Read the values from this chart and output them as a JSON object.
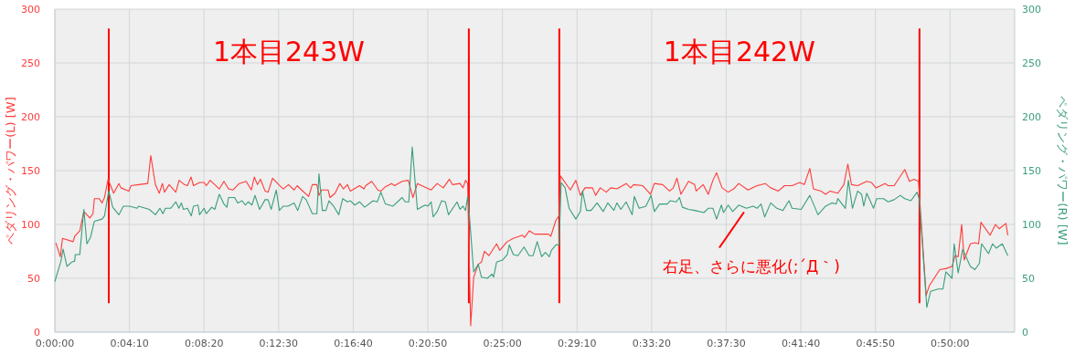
{
  "chart_data": {
    "type": "line",
    "ylabel": "ペダリング・パワー(L) [W]",
    "y2label": "ペダリング・パワー(R) [W]",
    "xlim": [
      0,
      0.8935
    ],
    "xticks": [
      {
        "value": 0,
        "label": "0:00:00"
      },
      {
        "value": 0.069444,
        "label": "0:04:10"
      },
      {
        "value": 0.138889,
        "label": "0:08:20"
      },
      {
        "value": 0.208333,
        "label": "0:12:30"
      },
      {
        "value": 0.277778,
        "label": "0:16:40"
      },
      {
        "value": 0.347222,
        "label": "0:20:50"
      },
      {
        "value": 0.416667,
        "label": "0:25:00"
      },
      {
        "value": 0.486111,
        "label": "0:29:10"
      },
      {
        "value": 0.555556,
        "label": "0:33:20"
      },
      {
        "value": 0.625,
        "label": "0:37:30"
      },
      {
        "value": 0.694444,
        "label": "0:41:40"
      },
      {
        "value": 0.763889,
        "label": "0:45:50"
      },
      {
        "value": 0.833333,
        "label": "0:50:00"
      }
    ],
    "ylim": [
      0,
      300
    ],
    "yticks": [
      0,
      50,
      100,
      150,
      200,
      250,
      300
    ],
    "y2lim": [
      0,
      300
    ],
    "y2ticks": [
      0,
      50,
      100,
      150,
      200,
      250,
      300
    ],
    "grid": true,
    "series": [
      {
        "color": "#ff3b3b",
        "x": [
          0.0009,
          0.0051,
          0.0071,
          0.017,
          0.0185,
          0.0232,
          0.027,
          0.0326,
          0.0355,
          0.0368,
          0.0411,
          0.044,
          0.0462,
          0.0496,
          0.0547,
          0.0596,
          0.0615,
          0.0689,
          0.0709,
          0.078,
          0.0865,
          0.0893,
          0.0936,
          0.0972,
          0.1001,
          0.1021,
          0.1064,
          0.1126,
          0.1157,
          0.1206,
          0.1234,
          0.1268,
          0.1291,
          0.1347,
          0.1389,
          0.141,
          0.1446,
          0.1531,
          0.1574,
          0.1617,
          0.1659,
          0.1716,
          0.1781,
          0.1829,
          0.1857,
          0.1886,
          0.1914,
          0.1957,
          0.1985,
          0.2027,
          0.2084,
          0.2127,
          0.2175,
          0.2227,
          0.2255,
          0.2297,
          0.2363,
          0.2397,
          0.2439,
          0.2459,
          0.2482,
          0.2544,
          0.2561,
          0.2609,
          0.2652,
          0.2686,
          0.2723,
          0.2751,
          0.2836,
          0.2878,
          0.2893,
          0.295,
          0.3006,
          0.3035,
          0.3077,
          0.3134,
          0.3162,
          0.3233,
          0.329,
          0.3333,
          0.3375,
          0.3503,
          0.3559,
          0.3616,
          0.3673,
          0.3701,
          0.3772,
          0.38,
          0.3823,
          0.3843,
          0.3871,
          0.3899,
          0.3942,
          0.3971,
          0.3999,
          0.4041,
          0.4112,
          0.4141,
          0.4211,
          0.4268,
          0.4353,
          0.4373,
          0.4416,
          0.4467,
          0.4594,
          0.4617,
          0.4665,
          0.4694,
          0.4707,
          0.4799,
          0.485,
          0.4892,
          0.4935,
          0.5005,
          0.5034,
          0.5077,
          0.5133,
          0.5175,
          0.5232,
          0.5318,
          0.536,
          0.5388,
          0.5473,
          0.5545,
          0.5581,
          0.5658,
          0.5723,
          0.5757,
          0.5791,
          0.5828,
          0.5899,
          0.5956,
          0.597,
          0.6035,
          0.6083,
          0.6126,
          0.616,
          0.6211,
          0.6268,
          0.6319,
          0.6366,
          0.6452,
          0.6537,
          0.6613,
          0.6664,
          0.6736,
          0.6792,
          0.6863,
          0.6934,
          0.6977,
          0.7028,
          0.7062,
          0.7132,
          0.7175,
          0.7217,
          0.7289,
          0.7345,
          0.7382,
          0.7416,
          0.7473,
          0.7558,
          0.76,
          0.7643,
          0.7728,
          0.7757,
          0.7813,
          0.7912,
          0.7955,
          0.7998,
          0.804,
          0.8111,
          0.814,
          0.8238,
          0.8295,
          0.8352,
          0.838,
          0.8409,
          0.8442,
          0.8465,
          0.8522,
          0.8565,
          0.8599,
          0.8621,
          0.8706,
          0.8757,
          0.8791,
          0.8854,
          0.8871
        ],
        "values": [
          83,
          70,
          87,
          84,
          89,
          94,
          112,
          106,
          110,
          124,
          124,
          120,
          125,
          142,
          129,
          138,
          134,
          131,
          136,
          137,
          138,
          164,
          137,
          129,
          138,
          130,
          137,
          130,
          141,
          137,
          136,
          144,
          136,
          139,
          139,
          136,
          141,
          133,
          140,
          133,
          132,
          138,
          140,
          132,
          144,
          137,
          142,
          131,
          130,
          143,
          137,
          133,
          137,
          132,
          136,
          132,
          126,
          137,
          137,
          127,
          132,
          132,
          125,
          129,
          138,
          133,
          137,
          131,
          136,
          133,
          136,
          140,
          132,
          131,
          135,
          138,
          136,
          140,
          141,
          125,
          138,
          132,
          138,
          134,
          142,
          137,
          138,
          134,
          141,
          138,
          6,
          51,
          63,
          65,
          75,
          71,
          82,
          76,
          84,
          87,
          90,
          88,
          94,
          91,
          91,
          89,
          104,
          108,
          145,
          132,
          141,
          127,
          134,
          134,
          127,
          134,
          130,
          134,
          133,
          138,
          134,
          137,
          136,
          128,
          138,
          137,
          131,
          134,
          143,
          128,
          140,
          137,
          131,
          137,
          128,
          141,
          148,
          134,
          130,
          133,
          138,
          132,
          136,
          138,
          134,
          131,
          136,
          136,
          139,
          137,
          152,
          133,
          131,
          128,
          131,
          129,
          137,
          156,
          137,
          136,
          140,
          139,
          134,
          138,
          136,
          136,
          151,
          140,
          142,
          140,
          34,
          43,
          58,
          59,
          61,
          71,
          70,
          100,
          67,
          82,
          83,
          82,
          102,
          90,
          100,
          96,
          101,
          90
        ]
      },
      {
        "color": "#3a9e7c",
        "axis": "y2",
        "x": [
          0,
          0.0057,
          0.0077,
          0.0113,
          0.0156,
          0.0185,
          0.019,
          0.0232,
          0.027,
          0.0298,
          0.0332,
          0.0368,
          0.044,
          0.0462,
          0.0502,
          0.0539,
          0.0596,
          0.0638,
          0.0695,
          0.0766,
          0.078,
          0.0879,
          0.0936,
          0.0978,
          0.1006,
          0.1029,
          0.1078,
          0.1126,
          0.1155,
          0.1177,
          0.1197,
          0.1234,
          0.127,
          0.1291,
          0.1333,
          0.1347,
          0.1389,
          0.141,
          0.1461,
          0.1489,
          0.1531,
          0.1574,
          0.1602,
          0.1617,
          0.1674,
          0.1702,
          0.1744,
          0.1772,
          0.1801,
          0.1835,
          0.1863,
          0.1906,
          0.1957,
          0.1985,
          0.2014,
          0.2061,
          0.209,
          0.2127,
          0.217,
          0.2227,
          0.2261,
          0.2306,
          0.234,
          0.2397,
          0.2439,
          0.2459,
          0.249,
          0.2524,
          0.2552,
          0.2595,
          0.2643,
          0.268,
          0.2723,
          0.2751,
          0.2793,
          0.2836,
          0.2884,
          0.2963,
          0.3001,
          0.3035,
          0.3077,
          0.3148,
          0.3233,
          0.3261,
          0.3295,
          0.3327,
          0.3375,
          0.3446,
          0.3474,
          0.3503,
          0.3522,
          0.3559,
          0.3601,
          0.3635,
          0.3664,
          0.3744,
          0.3772,
          0.38,
          0.3823,
          0.3843,
          0.3857,
          0.3899,
          0.3942,
          0.3971,
          0.4027,
          0.4069,
          0.4084,
          0.4112,
          0.4169,
          0.4211,
          0.4231,
          0.4268,
          0.4311,
          0.4367,
          0.4416,
          0.4452,
          0.449,
          0.4532,
          0.4566,
          0.4603,
          0.4622,
          0.4665,
          0.4694,
          0.4713,
          0.475,
          0.4787,
          0.485,
          0.4892,
          0.4912,
          0.4949,
          0.4992,
          0.5048,
          0.5105,
          0.5147,
          0.5204,
          0.5232,
          0.5269,
          0.5318,
          0.5374,
          0.5394,
          0.5439,
          0.5502,
          0.555,
          0.5581,
          0.563,
          0.57,
          0.5728,
          0.5785,
          0.5814,
          0.5842,
          0.5899,
          0.5956,
          0.6041,
          0.6083,
          0.6126,
          0.616,
          0.6205,
          0.6225,
          0.6268,
          0.631,
          0.6366,
          0.6438,
          0.65,
          0.6537,
          0.6574,
          0.6608,
          0.6664,
          0.6721,
          0.6778,
          0.6834,
          0.6863,
          0.6948,
          0.7028,
          0.7104,
          0.7175,
          0.7232,
          0.7274,
          0.7289,
          0.7359,
          0.7387,
          0.7425,
          0.7473,
          0.751,
          0.753,
          0.7558,
          0.7621,
          0.7651,
          0.7714,
          0.7757,
          0.7813,
          0.787,
          0.7912,
          0.7969,
          0.8026,
          0.8046,
          0.8117,
          0.8153,
          0.8225,
          0.8267,
          0.8295,
          0.8352,
          0.8372,
          0.8409,
          0.8451,
          0.8522,
          0.8565,
          0.8607,
          0.8627,
          0.8692,
          0.8729,
          0.8763,
          0.882,
          0.8871
        ],
        "values": [
          47,
          66,
          77,
          61,
          65,
          66,
          72,
          72,
          114,
          82,
          88,
          103,
          105,
          108,
          131,
          116,
          109,
          117,
          117,
          115,
          117,
          114,
          109,
          115,
          110,
          115,
          115,
          121,
          115,
          120,
          114,
          115,
          108,
          117,
          118,
          109,
          115,
          110,
          116,
          114,
          128,
          119,
          116,
          125,
          125,
          120,
          122,
          118,
          121,
          118,
          127,
          114,
          123,
          123,
          114,
          132,
          113,
          117,
          117,
          120,
          113,
          126,
          123,
          110,
          110,
          147,
          113,
          113,
          122,
          117,
          109,
          124,
          121,
          122,
          118,
          121,
          116,
          122,
          121,
          130,
          119,
          117,
          125,
          121,
          121,
          172,
          114,
          118,
          117,
          121,
          107,
          112,
          122,
          121,
          109,
          121,
          114,
          117,
          113,
          126,
          111,
          56,
          63,
          51,
          50,
          54,
          51,
          65,
          67,
          72,
          81,
          72,
          71,
          79,
          71,
          71,
          84,
          70,
          74,
          70,
          76,
          81,
          81,
          139,
          134,
          115,
          105,
          112,
          131,
          113,
          113,
          120,
          112,
          120,
          113,
          120,
          114,
          121,
          109,
          126,
          115,
          117,
          127,
          112,
          119,
          119,
          122,
          121,
          125,
          116,
          114,
          113,
          111,
          115,
          115,
          105,
          118,
          111,
          118,
          112,
          118,
          115,
          117,
          115,
          119,
          107,
          120,
          115,
          113,
          122,
          115,
          114,
          127,
          109,
          117,
          120,
          119,
          124,
          115,
          141,
          115,
          131,
          128,
          117,
          129,
          115,
          124,
          124,
          121,
          123,
          127,
          124,
          122,
          130,
          124,
          23,
          38,
          40,
          40,
          56,
          50,
          82,
          55,
          77,
          61,
          58,
          64,
          82,
          73,
          82,
          78,
          82,
          71
        ]
      }
    ],
    "ref_lines": [
      {
        "axis": "x",
        "value": 0.0502,
        "color": "#ff0000"
      },
      {
        "axis": "x",
        "value": 0.3854,
        "color": "#ff0000"
      },
      {
        "axis": "x",
        "value": 0.4696,
        "color": "#ff0000"
      },
      {
        "axis": "x",
        "value": 0.8049,
        "color": "#ff0000"
      }
    ],
    "annotations": [
      "1本目243W",
      "1本目242W",
      {
        "text": "右足、さらに悪化(;´Д｀)",
        "x": 0.6424,
        "y": 114
      }
    ]
  }
}
